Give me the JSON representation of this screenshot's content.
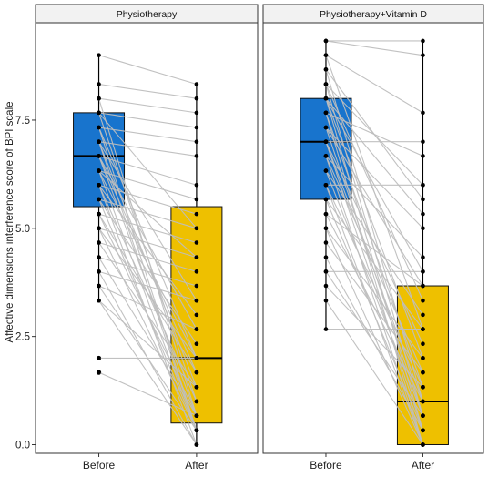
{
  "colors": {
    "before_box": "#1874CD",
    "after_box": "#EEC000",
    "pair_line": "#BEBEBE",
    "strip_bg": "#F2F2F2",
    "point": "#000000"
  },
  "chart_data": {
    "type": "boxplot-paired",
    "ylabel": "Affective dimensions interference score of BPI scale",
    "ylim": [
      -0.2,
      9.75
    ],
    "yticks": [
      0.0,
      2.5,
      5.0,
      7.5
    ],
    "ytick_labels": [
      "0.0",
      "2.5",
      "5.0",
      "7.5"
    ],
    "categories": [
      "Before",
      "After"
    ],
    "grid": false,
    "panels": [
      {
        "strip": "Physiotherapy",
        "boxes": [
          {
            "group": "Before",
            "min": 3.33,
            "q1": 5.5,
            "median": 6.67,
            "q3": 7.67,
            "max": 9.0,
            "outliers": [
              1.67,
              2.0
            ]
          },
          {
            "group": "After",
            "min": 0.0,
            "q1": 0.5,
            "median": 2.0,
            "q3": 5.5,
            "max": 8.33,
            "outliers": []
          }
        ],
        "pairs": [
          [
            9.0,
            8.33
          ],
          [
            8.33,
            8.0
          ],
          [
            8.0,
            7.67
          ],
          [
            8.0,
            0.67
          ],
          [
            7.67,
            7.33
          ],
          [
            7.67,
            5.0
          ],
          [
            7.67,
            1.0
          ],
          [
            7.33,
            7.0
          ],
          [
            7.33,
            2.0
          ],
          [
            7.33,
            0.33
          ],
          [
            7.0,
            6.67
          ],
          [
            7.0,
            3.33
          ],
          [
            7.0,
            0.33
          ],
          [
            7.0,
            1.33
          ],
          [
            6.67,
            6.0
          ],
          [
            6.67,
            2.67
          ],
          [
            6.67,
            0.67
          ],
          [
            6.67,
            1.67
          ],
          [
            6.33,
            5.67
          ],
          [
            6.33,
            4.33
          ],
          [
            6.33,
            0.33
          ],
          [
            6.33,
            2.0
          ],
          [
            6.0,
            5.33
          ],
          [
            6.0,
            3.0
          ],
          [
            6.0,
            0.0
          ],
          [
            6.0,
            1.0
          ],
          [
            5.67,
            5.0
          ],
          [
            5.67,
            2.33
          ],
          [
            5.67,
            0.33
          ],
          [
            5.33,
            4.67
          ],
          [
            5.33,
            1.67
          ],
          [
            5.33,
            0.67
          ],
          [
            5.0,
            4.33
          ],
          [
            5.0,
            2.0
          ],
          [
            5.0,
            0.33
          ],
          [
            4.67,
            4.0
          ],
          [
            4.67,
            1.33
          ],
          [
            4.33,
            3.67
          ],
          [
            4.33,
            0.67
          ],
          [
            4.0,
            3.33
          ],
          [
            4.0,
            0.0
          ],
          [
            3.67,
            2.67
          ],
          [
            3.67,
            0.33
          ],
          [
            3.33,
            1.33
          ],
          [
            3.33,
            0.0
          ],
          [
            2.0,
            2.0
          ],
          [
            1.67,
            0.67
          ]
        ]
      },
      {
        "strip": "Physiotherapy+Vitamin D",
        "boxes": [
          {
            "group": "Before",
            "min": 2.67,
            "q1": 5.67,
            "median": 7.0,
            "q3": 8.0,
            "max": 9.33,
            "outliers": []
          },
          {
            "group": "After",
            "min": 0.0,
            "q1": 0.0,
            "median": 1.0,
            "q3": 3.67,
            "max": 9.33,
            "outliers": []
          }
        ],
        "pairs": [
          [
            9.33,
            9.33
          ],
          [
            9.33,
            9.0
          ],
          [
            9.0,
            7.67
          ],
          [
            9.0,
            2.67
          ],
          [
            8.67,
            5.67
          ],
          [
            8.67,
            1.0
          ],
          [
            8.33,
            6.0
          ],
          [
            8.33,
            0.67
          ],
          [
            8.33,
            3.33
          ],
          [
            8.0,
            5.33
          ],
          [
            8.0,
            0.33
          ],
          [
            8.0,
            2.0
          ],
          [
            8.0,
            4.0
          ],
          [
            7.67,
            6.67
          ],
          [
            7.67,
            1.33
          ],
          [
            7.67,
            0.0
          ],
          [
            7.33,
            5.0
          ],
          [
            7.33,
            3.67
          ],
          [
            7.33,
            0.67
          ],
          [
            7.0,
            7.0
          ],
          [
            7.0,
            2.33
          ],
          [
            7.0,
            0.33
          ],
          [
            7.0,
            1.0
          ],
          [
            6.67,
            4.33
          ],
          [
            6.67,
            1.67
          ],
          [
            6.67,
            0.0
          ],
          [
            6.33,
            3.0
          ],
          [
            6.33,
            0.67
          ],
          [
            6.0,
            6.0
          ],
          [
            6.0,
            1.33
          ],
          [
            6.0,
            0.0
          ],
          [
            5.67,
            2.67
          ],
          [
            5.67,
            0.33
          ],
          [
            5.33,
            3.67
          ],
          [
            5.33,
            1.0
          ],
          [
            5.0,
            2.0
          ],
          [
            5.0,
            0.0
          ],
          [
            4.67,
            1.67
          ],
          [
            4.33,
            0.33
          ],
          [
            4.0,
            4.0
          ],
          [
            4.0,
            0.67
          ],
          [
            3.67,
            1.33
          ],
          [
            3.33,
            0.0
          ],
          [
            2.67,
            2.67
          ]
        ]
      }
    ]
  }
}
